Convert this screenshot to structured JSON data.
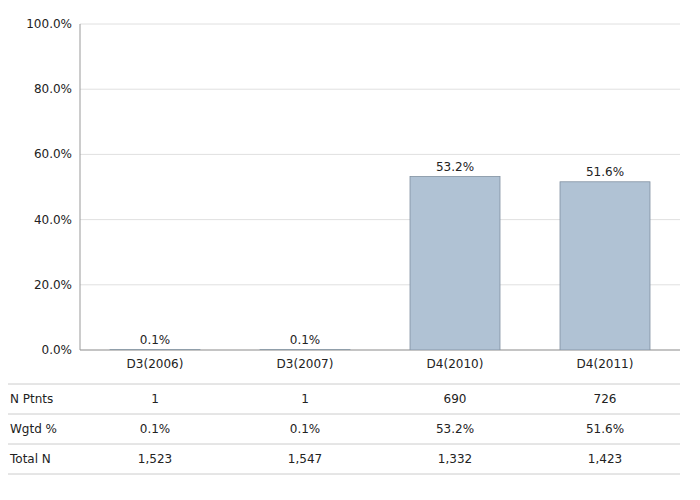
{
  "chart_data": {
    "type": "bar",
    "categories": [
      "D3(2006)",
      "D3(2007)",
      "D4(2010)",
      "D4(2011)"
    ],
    "values": [
      0.1,
      0.1,
      53.2,
      51.6
    ],
    "value_labels": [
      "0.1%",
      "0.1%",
      "53.2%",
      "51.6%"
    ],
    "data_labels": true,
    "color": "#b0c2d4",
    "ylim": [
      0,
      100
    ],
    "yticks": [
      {
        "value": 0,
        "label": "0.0%"
      },
      {
        "value": 20,
        "label": "20.0%"
      },
      {
        "value": 40,
        "label": "40.0%"
      },
      {
        "value": 60,
        "label": "60.0%"
      },
      {
        "value": 80,
        "label": "80.0%"
      },
      {
        "value": 100,
        "label": "100.0%"
      }
    ],
    "grid": true,
    "table_rows": [
      {
        "label": "N Ptnts",
        "values": [
          "1",
          "1",
          "690",
          "726"
        ]
      },
      {
        "label": "Wgtd %",
        "values": [
          "0.1%",
          "0.1%",
          "53.2%",
          "51.6%"
        ]
      },
      {
        "label": "Total N",
        "values": [
          "1,523",
          "1,547",
          "1,332",
          "1,423"
        ]
      }
    ]
  }
}
